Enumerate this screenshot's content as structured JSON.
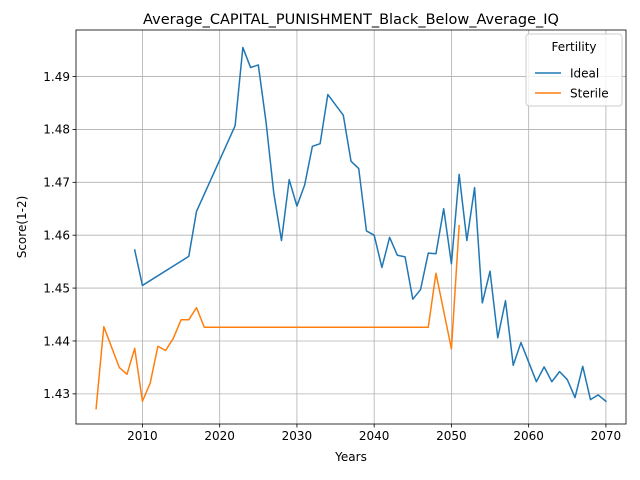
{
  "chart_data": {
    "type": "line",
    "title": "Average_CAPITAL_PUNISHMENT_Black_Below_Average_IQ",
    "xlabel": "Years",
    "ylabel": "Score(1-2)",
    "xlim": [
      2001.4,
      2072.6
    ],
    "ylim": [
      1.4243,
      1.4988
    ],
    "xticks": [
      2010,
      2020,
      2030,
      2040,
      2050,
      2060,
      2070
    ],
    "yticks": [
      1.43,
      1.44,
      1.45,
      1.46,
      1.47,
      1.48,
      1.49
    ],
    "grid": true,
    "legend": {
      "title": "Fertility",
      "position": "top-right"
    },
    "series": [
      {
        "name": "Ideal",
        "color": "#1f77b4",
        "points": [
          [
            2009,
            1.4572
          ],
          [
            2010,
            1.4505
          ],
          [
            2016,
            1.456
          ],
          [
            2017,
            1.4645
          ],
          [
            2022,
            1.4807
          ],
          [
            2023,
            1.4955
          ],
          [
            2024,
            1.4917
          ],
          [
            2025,
            1.4922
          ],
          [
            2026,
            1.4814
          ],
          [
            2027,
            1.468
          ],
          [
            2028,
            1.459
          ],
          [
            2029,
            1.4705
          ],
          [
            2030,
            1.4655
          ],
          [
            2031,
            1.4695
          ],
          [
            2032,
            1.4768
          ],
          [
            2033,
            1.4773
          ],
          [
            2034,
            1.4866
          ],
          [
            2036,
            1.4827
          ],
          [
            2037,
            1.474
          ],
          [
            2038,
            1.4726
          ],
          [
            2039,
            1.4608
          ],
          [
            2040,
            1.46
          ],
          [
            2041,
            1.4539
          ],
          [
            2042,
            1.4596
          ],
          [
            2043,
            1.4562
          ],
          [
            2044,
            1.4559
          ],
          [
            2045,
            1.4479
          ],
          [
            2046,
            1.4497
          ],
          [
            2047,
            1.4566
          ],
          [
            2048,
            1.4565
          ],
          [
            2049,
            1.465
          ],
          [
            2050,
            1.4546
          ],
          [
            2051,
            1.4715
          ],
          [
            2052,
            1.459
          ],
          [
            2053,
            1.469
          ],
          [
            2054,
            1.4472
          ],
          [
            2055,
            1.4532
          ],
          [
            2056,
            1.4406
          ],
          [
            2057,
            1.4476
          ],
          [
            2058,
            1.4354
          ],
          [
            2059,
            1.4397
          ],
          [
            2061,
            1.4323
          ],
          [
            2062,
            1.4351
          ],
          [
            2063,
            1.4323
          ],
          [
            2064,
            1.4342
          ],
          [
            2065,
            1.4327
          ],
          [
            2066,
            1.4293
          ],
          [
            2067,
            1.4352
          ],
          [
            2068,
            1.4289
          ],
          [
            2069,
            1.4298
          ],
          [
            2070,
            1.4286
          ]
        ]
      },
      {
        "name": "Sterile",
        "color": "#ff7f0e",
        "points": [
          [
            2004,
            1.4272
          ],
          [
            2005,
            1.4427
          ],
          [
            2007,
            1.435
          ],
          [
            2008,
            1.4337
          ],
          [
            2009,
            1.4386
          ],
          [
            2010,
            1.4286
          ],
          [
            2011,
            1.432
          ],
          [
            2012,
            1.439
          ],
          [
            2013,
            1.4382
          ],
          [
            2014,
            1.4405
          ],
          [
            2015,
            1.444
          ],
          [
            2016,
            1.444
          ],
          [
            2017,
            1.4463
          ],
          [
            2018,
            1.4426
          ],
          [
            2019,
            1.4426
          ],
          [
            2047,
            1.4426
          ],
          [
            2048,
            1.4528
          ],
          [
            2050,
            1.4385
          ],
          [
            2051,
            1.4618
          ]
        ]
      }
    ]
  }
}
